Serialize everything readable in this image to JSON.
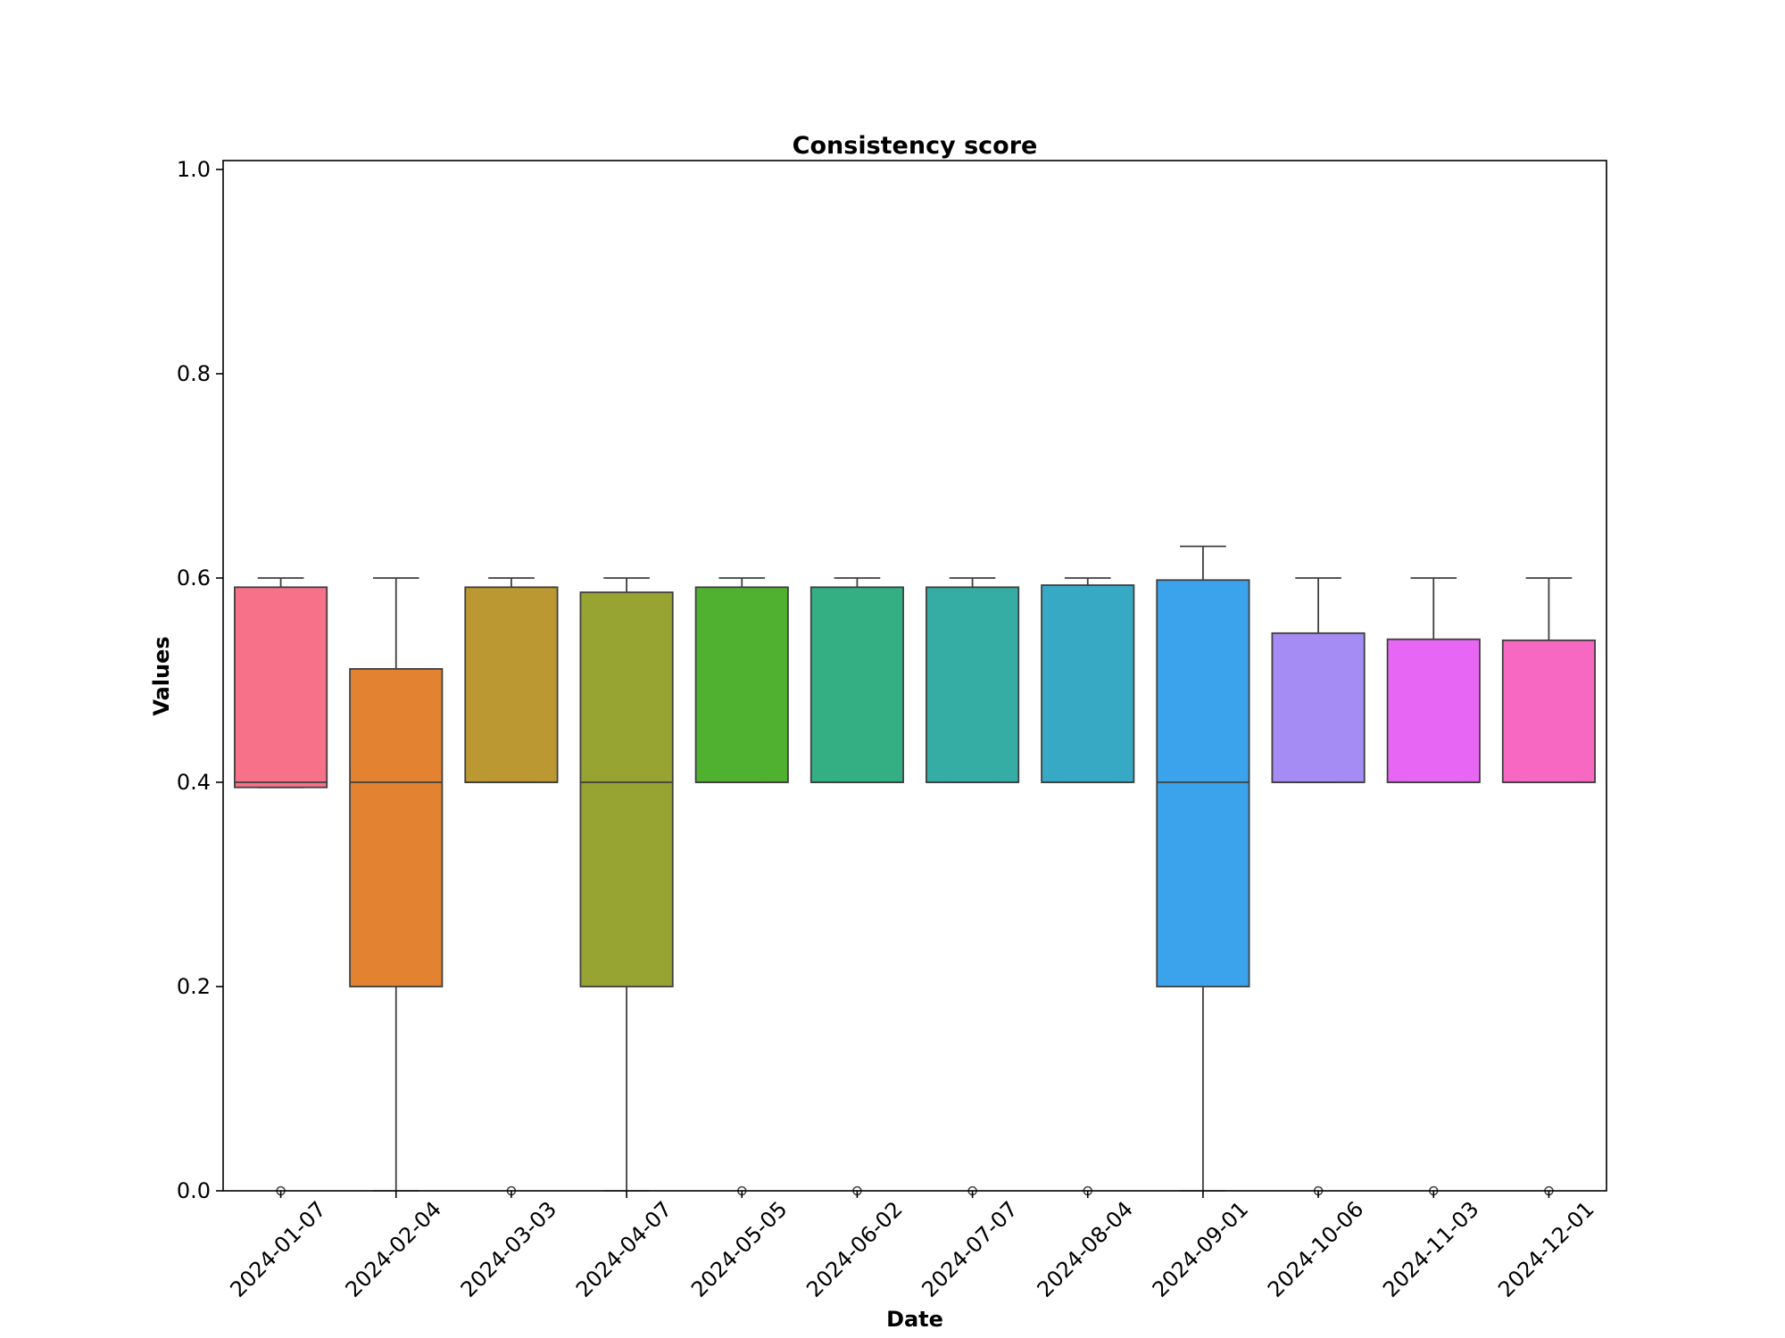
{
  "chart_data": {
    "type": "box",
    "title": "Consistency score",
    "xlabel": "Date",
    "ylabel": "Values",
    "ylim": [
      0.0,
      1.01
    ],
    "yticks": [
      "0.0",
      "0.2",
      "0.4",
      "0.6",
      "0.8",
      "1.0"
    ],
    "ytick_values": [
      0.0,
      0.2,
      0.4,
      0.6,
      0.8,
      1.0
    ],
    "grid": false,
    "legend": "none",
    "categories": [
      "2024-01-07",
      "2024-02-04",
      "2024-03-03",
      "2024-04-07",
      "2024-05-05",
      "2024-06-02",
      "2024-07-07",
      "2024-08-04",
      "2024-09-01",
      "2024-10-06",
      "2024-11-03",
      "2024-12-01"
    ],
    "boxes": [
      {
        "whisker_low": 0.395,
        "q1": 0.395,
        "median": 0.4,
        "q3": 0.591,
        "whisker_high": 0.6,
        "outliers": [
          0.0
        ],
        "color": "#f77189"
      },
      {
        "whisker_low": 0.0,
        "q1": 0.2,
        "median": 0.4,
        "q3": 0.511,
        "whisker_high": 0.6,
        "outliers": [],
        "color": "#e38331"
      },
      {
        "whisker_low": 0.4,
        "q1": 0.4,
        "median": 0.4,
        "q3": 0.591,
        "whisker_high": 0.6,
        "outliers": [
          0.0
        ],
        "color": "#bb9832"
      },
      {
        "whisker_low": 0.0,
        "q1": 0.2,
        "median": 0.4,
        "q3": 0.586,
        "whisker_high": 0.6,
        "outliers": [],
        "color": "#97a431"
      },
      {
        "whisker_low": 0.4,
        "q1": 0.4,
        "median": 0.4,
        "q3": 0.591,
        "whisker_high": 0.6,
        "outliers": [
          0.0
        ],
        "color": "#50b131"
      },
      {
        "whisker_low": 0.4,
        "q1": 0.4,
        "median": 0.4,
        "q3": 0.591,
        "whisker_high": 0.6,
        "outliers": [
          0.0
        ],
        "color": "#34af84"
      },
      {
        "whisker_low": 0.4,
        "q1": 0.4,
        "median": 0.4,
        "q3": 0.591,
        "whisker_high": 0.6,
        "outliers": [
          0.0
        ],
        "color": "#36ada4"
      },
      {
        "whisker_low": 0.4,
        "q1": 0.4,
        "median": 0.4,
        "q3": 0.593,
        "whisker_high": 0.6,
        "outliers": [
          0.0
        ],
        "color": "#38a9c5"
      },
      {
        "whisker_low": 0.0,
        "q1": 0.2,
        "median": 0.4,
        "q3": 0.598,
        "whisker_high": 0.631,
        "outliers": [],
        "color": "#3ba3ec"
      },
      {
        "whisker_low": 0.4,
        "q1": 0.4,
        "median": 0.4,
        "q3": 0.546,
        "whisker_high": 0.6,
        "outliers": [
          0.0
        ],
        "color": "#a48cf4"
      },
      {
        "whisker_low": 0.4,
        "q1": 0.4,
        "median": 0.4,
        "q3": 0.54,
        "whisker_high": 0.6,
        "outliers": [
          0.0
        ],
        "color": "#e866f4"
      },
      {
        "whisker_low": 0.4,
        "q1": 0.4,
        "median": 0.4,
        "q3": 0.539,
        "whisker_high": 0.6,
        "outliers": [
          0.0
        ],
        "color": "#f668c2"
      }
    ]
  }
}
